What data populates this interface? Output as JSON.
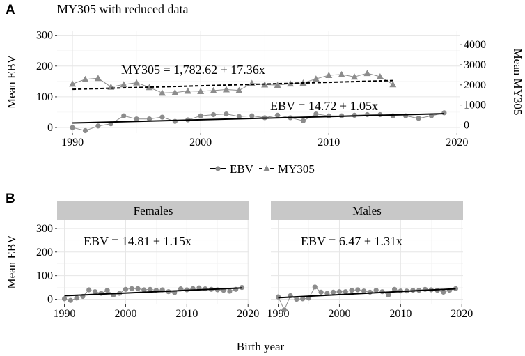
{
  "chart_data": [
    {
      "panel": "A",
      "type": "line",
      "title": "MY305 with reduced data",
      "xlabel": "",
      "ylabel": "Mean EBV",
      "ylabel_right": "Mean MY305",
      "xlim": [
        1988.8,
        2020.2
      ],
      "ylim": [
        -18,
        315
      ],
      "ylim_right": [
        -400,
        4700
      ],
      "x_ticks": [
        1990,
        2000,
        2010,
        2020
      ],
      "y_ticks": [
        0,
        100,
        200,
        300
      ],
      "y_ticks_right": [
        0,
        1000,
        2000,
        3000,
        4000
      ],
      "grid": true,
      "legend": {
        "position": "bottom",
        "entries": [
          {
            "label": "EBV",
            "marker": "circle",
            "line": "solid"
          },
          {
            "label": "MY305",
            "marker": "triangle",
            "line": "dashed"
          }
        ]
      },
      "series": [
        {
          "name": "EBV",
          "axis": "left",
          "marker": "circle",
          "x": [
            1990,
            1991,
            1992,
            1993,
            1994,
            1995,
            1996,
            1997,
            1998,
            1999,
            2000,
            2001,
            2002,
            2003,
            2004,
            2005,
            2006,
            2007,
            2008,
            2009,
            2010,
            2011,
            2012,
            2013,
            2014,
            2015,
            2016,
            2017,
            2018,
            2019
          ],
          "values": [
            0,
            -10,
            5,
            12,
            38,
            28,
            28,
            34,
            20,
            25,
            38,
            42,
            44,
            36,
            38,
            32,
            40,
            32,
            22,
            44,
            38,
            38,
            40,
            42,
            42,
            38,
            38,
            30,
            38,
            48
          ],
          "fit": {
            "intercept": 14.72,
            "slope": 1.05,
            "x0": 1990,
            "x_end": 2019,
            "label": "EBV = 14.72 + 1.05x"
          }
        },
        {
          "name": "MY305",
          "axis": "right",
          "marker": "triangle",
          "x": [
            1990,
            1991,
            1992,
            1993,
            1994,
            1995,
            1996,
            1997,
            1998,
            1999,
            2000,
            2001,
            2002,
            2003,
            2004,
            2005,
            2006,
            2007,
            2008,
            2009,
            2010,
            2011,
            2012,
            2013,
            2014,
            2015
          ],
          "values": [
            2050,
            2280,
            2330,
            1900,
            2020,
            2110,
            1880,
            1600,
            1620,
            1700,
            1680,
            1720,
            1770,
            1730,
            2080,
            2010,
            1990,
            2060,
            2100,
            2300,
            2480,
            2520,
            2400,
            2580,
            2410,
            2020
          ],
          "fit": {
            "intercept": 1782.62,
            "slope": 17.36,
            "x0": 1990,
            "x_end": 2015,
            "label": "MY305 = 1,782.62 + 17.36x"
          }
        }
      ]
    },
    {
      "panel": "B",
      "facet": "Females",
      "type": "scatter",
      "xlabel": "Birth year",
      "ylabel": "Mean EBV",
      "xlim": [
        1988.8,
        2020.2
      ],
      "ylim": [
        -22,
        335
      ],
      "x_ticks": [
        1990,
        2000,
        2010,
        2020
      ],
      "y_ticks": [
        0,
        100,
        200,
        300
      ],
      "grid": true,
      "series": [
        {
          "name": "EBV",
          "x": [
            1990,
            1991,
            1992,
            1993,
            1994,
            1995,
            1996,
            1997,
            1998,
            1999,
            2000,
            2001,
            2002,
            2003,
            2004,
            2005,
            2006,
            2007,
            2008,
            2009,
            2010,
            2011,
            2012,
            2013,
            2014,
            2015,
            2016,
            2017,
            2018,
            2019
          ],
          "values": [
            2,
            -5,
            5,
            12,
            40,
            32,
            25,
            38,
            18,
            25,
            42,
            45,
            45,
            40,
            42,
            38,
            40,
            32,
            28,
            44,
            40,
            45,
            48,
            44,
            42,
            40,
            38,
            34,
            42,
            50
          ],
          "fit": {
            "intercept": 14.81,
            "slope": 1.15,
            "x0": 1990,
            "x_end": 2019,
            "label": "EBV = 14.81 + 1.15x"
          }
        }
      ]
    },
    {
      "panel": "B",
      "facet": "Males",
      "type": "scatter",
      "xlabel": "Birth year",
      "ylabel": "",
      "xlim": [
        1988.8,
        2020.2
      ],
      "ylim": [
        -22,
        335
      ],
      "x_ticks": [
        1990,
        2000,
        2010,
        2020
      ],
      "y_ticks": [
        0,
        100,
        200,
        300
      ],
      "grid": true,
      "series": [
        {
          "name": "EBV",
          "x": [
            1990,
            1991,
            1992,
            1993,
            1994,
            1995,
            1996,
            1997,
            1998,
            1999,
            2000,
            2001,
            2002,
            2003,
            2004,
            2005,
            2006,
            2007,
            2008,
            2009,
            2010,
            2011,
            2012,
            2013,
            2014,
            2015,
            2016,
            2017,
            2018,
            2019
          ],
          "values": [
            10,
            -45,
            15,
            0,
            2,
            5,
            52,
            30,
            25,
            30,
            32,
            32,
            38,
            40,
            35,
            30,
            38,
            32,
            18,
            42,
            35,
            35,
            38,
            38,
            42,
            40,
            38,
            30,
            38,
            45
          ],
          "fit": {
            "intercept": 6.47,
            "slope": 1.31,
            "x0": 1990,
            "x_end": 2019,
            "label": "EBV = 6.47 + 1.31x"
          }
        }
      ]
    }
  ],
  "labels": {
    "panel_a": "A",
    "panel_b": "B",
    "facet_females": "Females",
    "facet_males": "Males"
  },
  "colors": {
    "point": "#8c8c8c",
    "triangle": "#8c8c8c",
    "grid_major": "#e6e6e6",
    "grid_minor": "#f3f3f3",
    "line": "#000000",
    "strip": "#c8c8c8"
  }
}
